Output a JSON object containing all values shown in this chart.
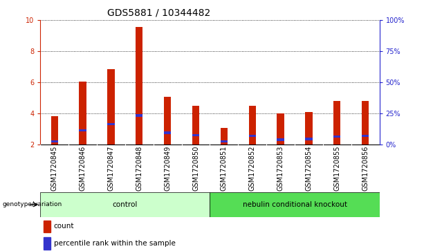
{
  "title": "GDS5881 / 10344482",
  "samples": [
    "GSM1720845",
    "GSM1720846",
    "GSM1720847",
    "GSM1720848",
    "GSM1720849",
    "GSM1720850",
    "GSM1720851",
    "GSM1720852",
    "GSM1720853",
    "GSM1720854",
    "GSM1720855",
    "GSM1720856"
  ],
  "count_values": [
    3.8,
    6.05,
    6.85,
    9.55,
    5.05,
    4.5,
    3.05,
    4.5,
    4.0,
    4.1,
    4.8,
    4.8
  ],
  "percentile_values": [
    2.2,
    2.9,
    3.3,
    3.85,
    2.75,
    2.6,
    2.2,
    2.55,
    2.3,
    2.35,
    2.5,
    2.55
  ],
  "ymin": 2,
  "ymax": 10,
  "yticks_left": [
    2,
    4,
    6,
    8,
    10
  ],
  "yticks_right": [
    0,
    25,
    50,
    75,
    100
  ],
  "bar_color_red": "#cc2200",
  "bar_color_blue": "#3333cc",
  "axis_color_red": "#cc2200",
  "axis_color_blue": "#2222cc",
  "group1_label": "control",
  "group2_label": "nebulin conditional knockout",
  "group1_color": "#ccffcc",
  "group2_color": "#55dd55",
  "genotype_label": "genotype/variation",
  "legend_count": "count",
  "legend_percentile": "percentile rank within the sample",
  "xtick_bg_color": "#cccccc",
  "plot_bg_color": "#ffffff",
  "title_fontsize": 10,
  "tick_fontsize": 7,
  "label_fontsize": 7.5,
  "bar_width": 0.25
}
